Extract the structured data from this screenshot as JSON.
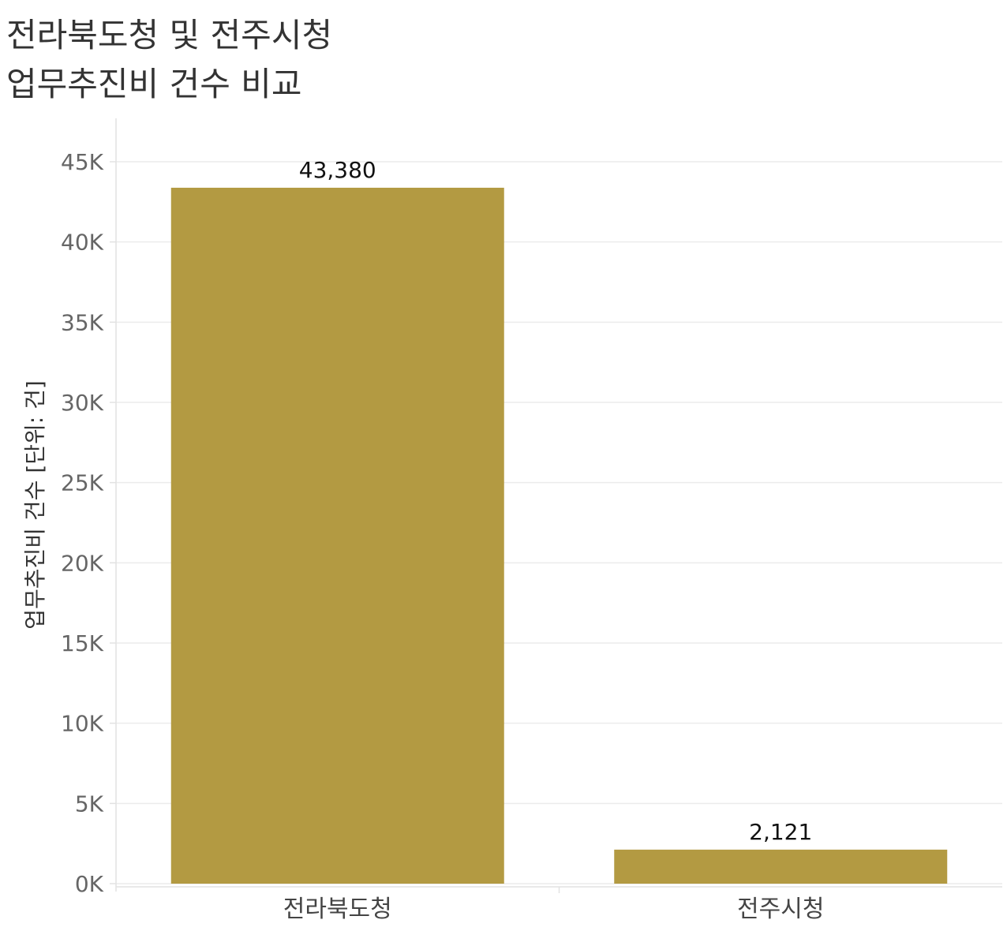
{
  "title_line1": "전라북도청 및 전주시청",
  "title_line2": "업무추진비 건수 비교",
  "colors": {
    "bar": "#b39a42",
    "grid": "#ececec",
    "axis": "#e2e2e2"
  },
  "chart_data": {
    "type": "bar",
    "categories": [
      "전라북도청",
      "전주시청"
    ],
    "values": [
      43380,
      2121
    ],
    "value_labels": [
      "43,380",
      "2,121"
    ],
    "ylabel": "업무추진비 건수 [단위: 건]",
    "ylim": [
      0,
      45000
    ],
    "yticks": [
      0,
      5000,
      10000,
      15000,
      20000,
      25000,
      30000,
      35000,
      40000,
      45000
    ],
    "ytick_labels": [
      "0K",
      "5K",
      "10K",
      "15K",
      "20K",
      "25K",
      "30K",
      "35K",
      "40K",
      "45K"
    ],
    "grid": true,
    "legend": "none"
  }
}
